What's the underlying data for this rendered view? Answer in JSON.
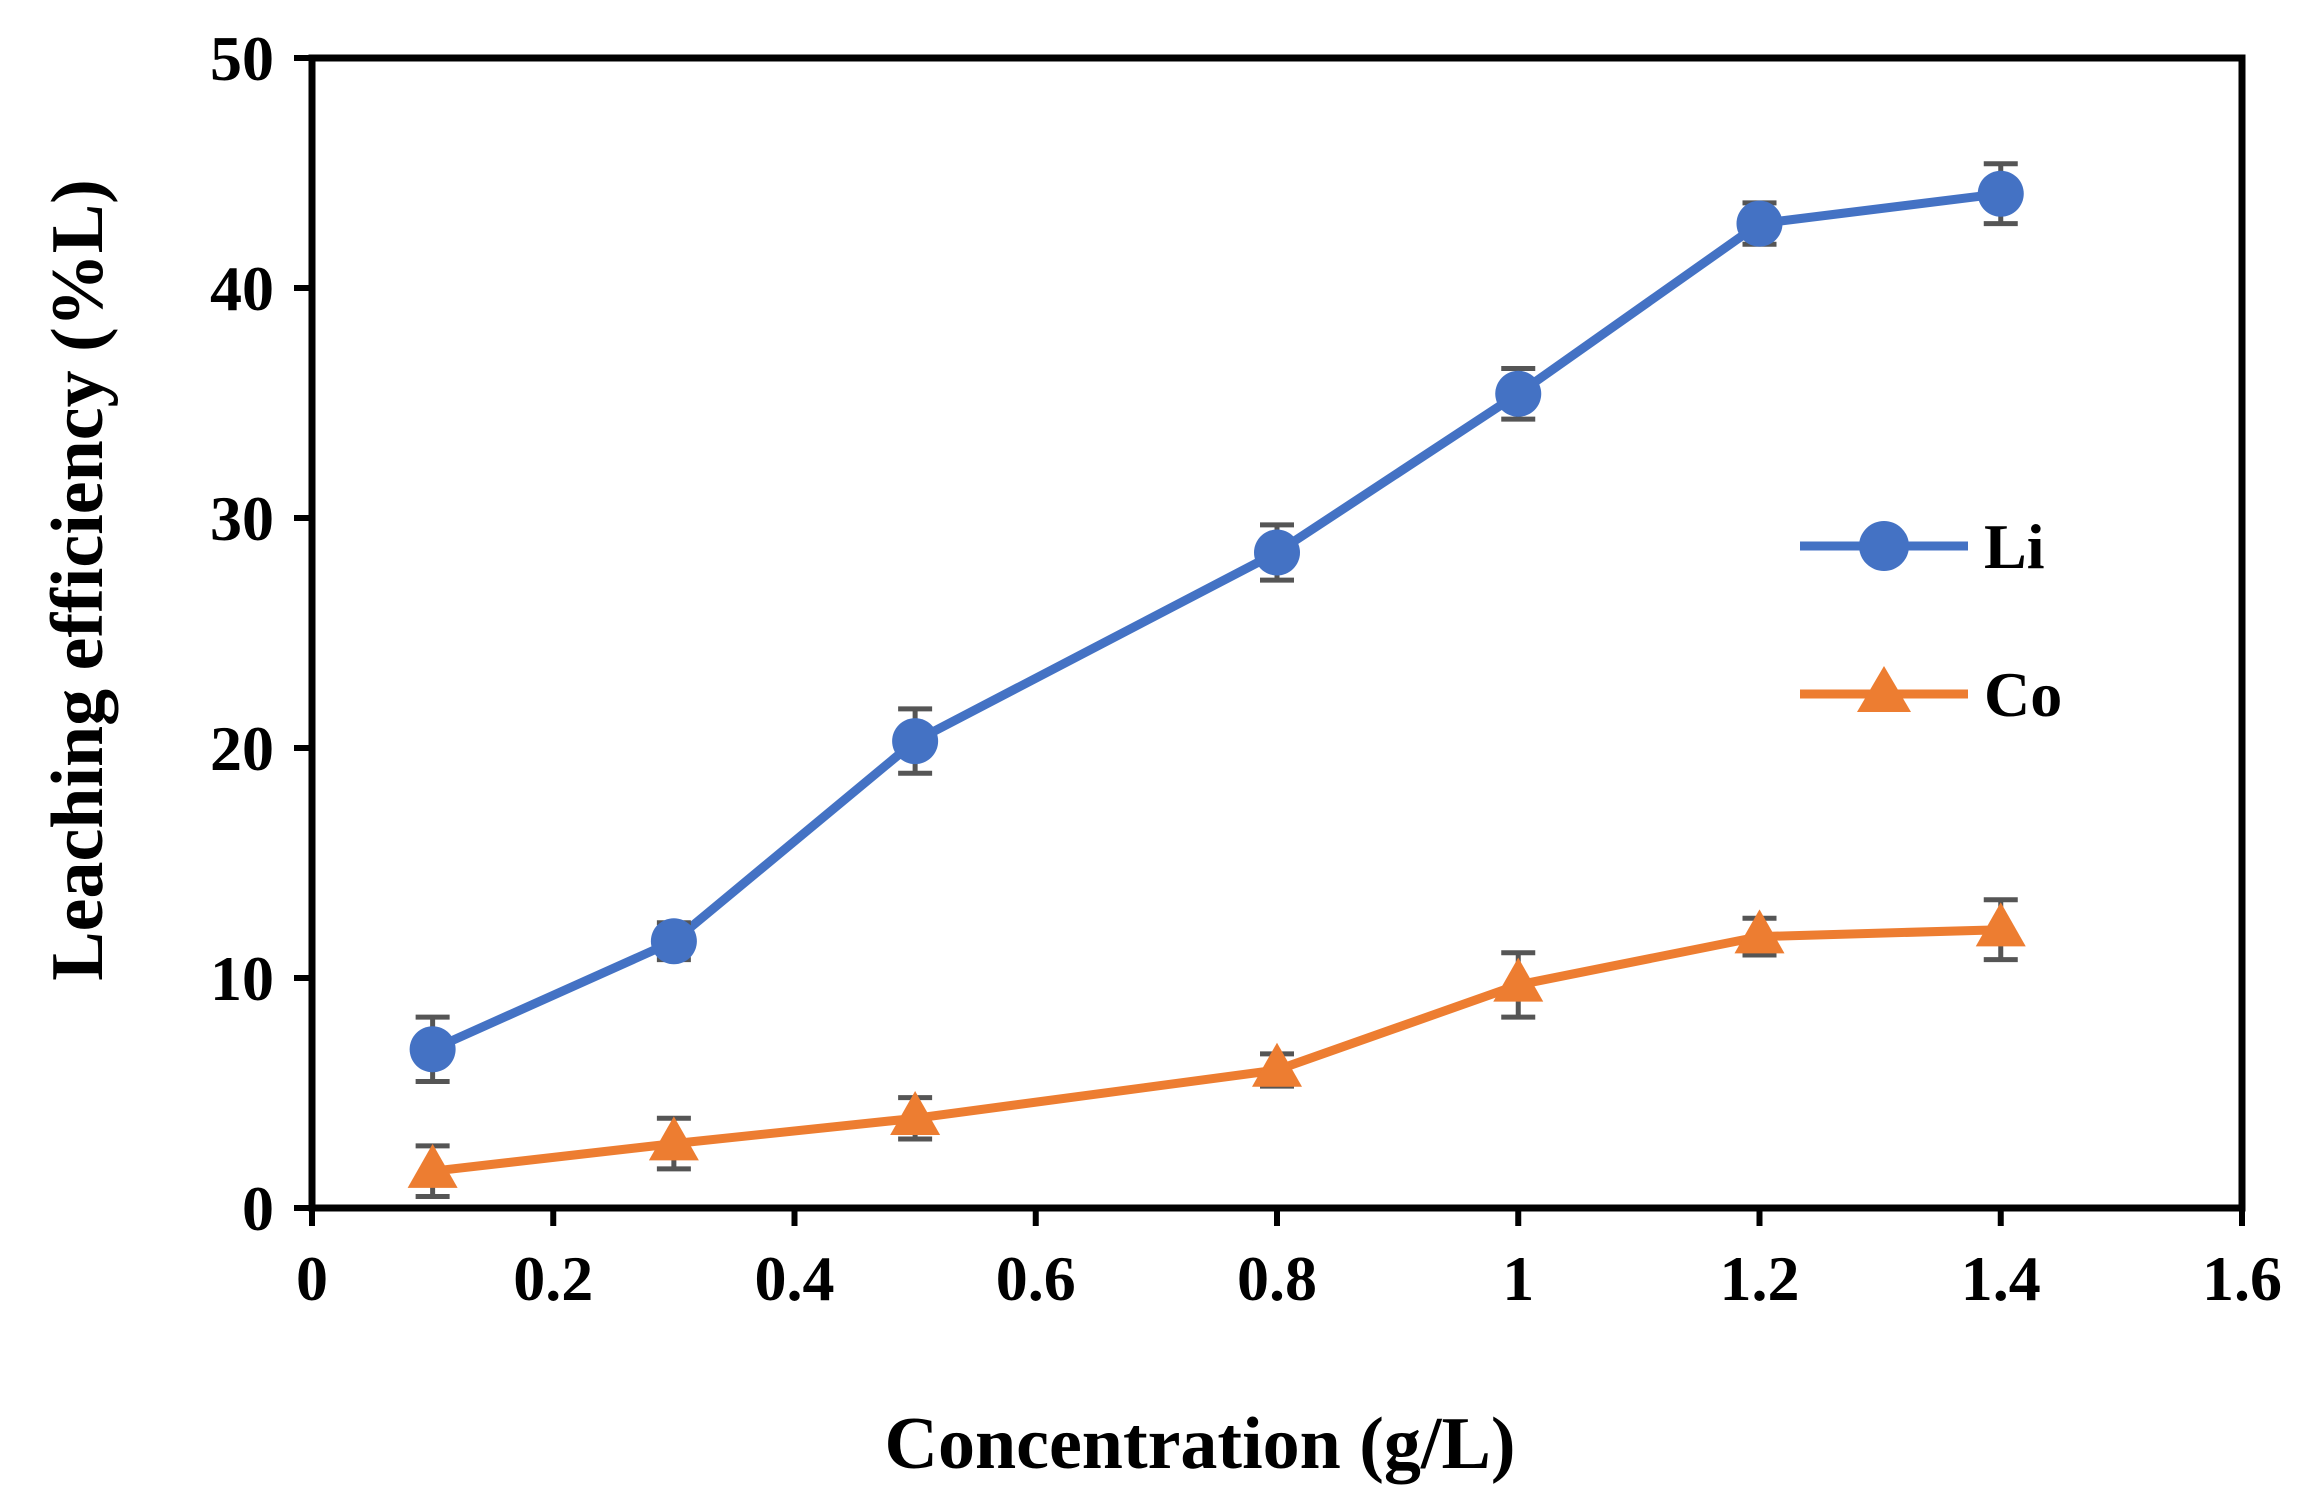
{
  "chart_data": {
    "type": "line",
    "title": "",
    "xlabel": "Concentration (g/L)",
    "ylabel": "Leaching efficiency (%L)",
    "xlim": [
      0,
      1.6
    ],
    "ylim": [
      0,
      50
    ],
    "x_ticks": [
      "0",
      "0.2",
      "0.4",
      "0.6",
      "0.8",
      "1",
      "1.2",
      "1.4",
      "1.6"
    ],
    "y_ticks": [
      "0",
      "10",
      "20",
      "30",
      "40",
      "50"
    ],
    "grid": false,
    "legend_position": "right",
    "series": [
      {
        "name": "Li",
        "color": "#4472C4",
        "marker": "circle",
        "x": [
          0.1,
          0.3,
          0.5,
          0.8,
          1.0,
          1.2,
          1.4
        ],
        "y": [
          6.9,
          11.6,
          20.3,
          28.5,
          35.4,
          42.8,
          44.1
        ],
        "error": [
          1.4,
          0.8,
          1.4,
          1.2,
          1.1,
          0.9,
          1.3
        ]
      },
      {
        "name": "Co",
        "color": "#ED7D31",
        "marker": "triangle",
        "x": [
          0.1,
          0.3,
          0.5,
          0.8,
          1.0,
          1.2,
          1.4
        ],
        "y": [
          1.6,
          2.8,
          3.9,
          6.0,
          9.7,
          11.8,
          12.1
        ],
        "error": [
          1.1,
          1.1,
          0.9,
          0.7,
          1.4,
          0.8,
          1.3
        ]
      }
    ]
  }
}
